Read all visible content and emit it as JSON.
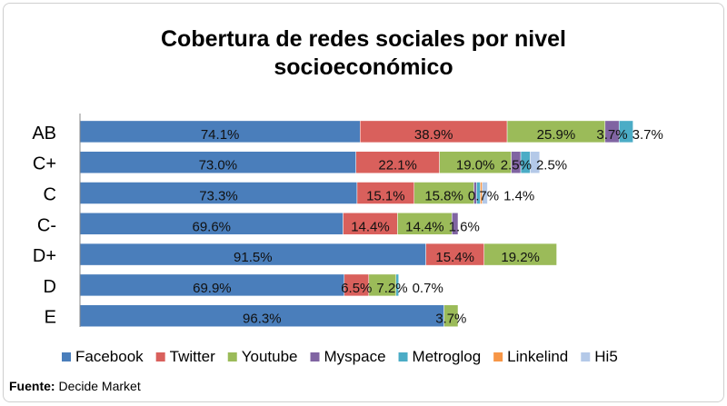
{
  "chart_data": {
    "type": "bar",
    "orientation": "horizontal",
    "stacked": true,
    "title_lines": [
      "Cobertura de redes sociales  por nivel",
      "socioeconómico"
    ],
    "categories": [
      "AB",
      "C+",
      "C",
      "C-",
      "D+",
      "D",
      "E"
    ],
    "series": [
      {
        "name": "Facebook",
        "color": "#4a7ebb",
        "values": [
          74.1,
          73.0,
          73.3,
          69.6,
          91.5,
          69.9,
          96.3
        ],
        "labels": [
          "74.1%",
          "73.0%",
          "73.3%",
          "69.6%",
          "91.5%",
          "69.9%",
          "96.3%"
        ]
      },
      {
        "name": "Twitter",
        "color": "#d9605c",
        "values": [
          38.9,
          22.1,
          15.1,
          14.4,
          15.4,
          6.5,
          0
        ],
        "labels": [
          "38.9%",
          "22.1%",
          "15.1%",
          "14.4%",
          "15.4%",
          "6.5%",
          ""
        ]
      },
      {
        "name": "Youtube",
        "color": "#9bbb59",
        "values": [
          25.9,
          19.0,
          15.8,
          14.4,
          19.2,
          7.2,
          3.7
        ],
        "labels": [
          "25.9%",
          "19.0%",
          "15.8%",
          "14.4%",
          "19.2%",
          "7.2%",
          "3.7%"
        ]
      },
      {
        "name": "Myspace",
        "color": "#8064a2",
        "values": [
          3.7,
          2.5,
          0.7,
          1.6,
          0,
          0,
          0
        ],
        "labels": [
          "3.7%",
          "2.5%",
          "0.7%",
          "1.6%",
          "",
          "",
          ""
        ]
      },
      {
        "name": "Metroglog",
        "color": "#4bacc6",
        "values": [
          3.7,
          2.5,
          1.0,
          0,
          0,
          0.7,
          0
        ],
        "labels": [
          "3.7%",
          "",
          "",
          "",
          "",
          "0.7%",
          ""
        ]
      },
      {
        "name": "Linkelind",
        "color": "#f79646",
        "values": [
          0,
          0,
          0.5,
          0,
          0,
          0,
          0
        ],
        "labels": [
          "",
          "",
          "",
          "",
          "",
          "",
          ""
        ]
      },
      {
        "name": "Hi5",
        "color": "#b4c9e8",
        "values": [
          0,
          2.5,
          1.4,
          0,
          0,
          0,
          0
        ],
        "labels": [
          "",
          "2.5%",
          "1.4%",
          "",
          "",
          "",
          ""
        ]
      }
    ],
    "legend": "bottom",
    "grid": false
  },
  "source": {
    "label": "Fuente:",
    "text": "Decide  Market"
  }
}
